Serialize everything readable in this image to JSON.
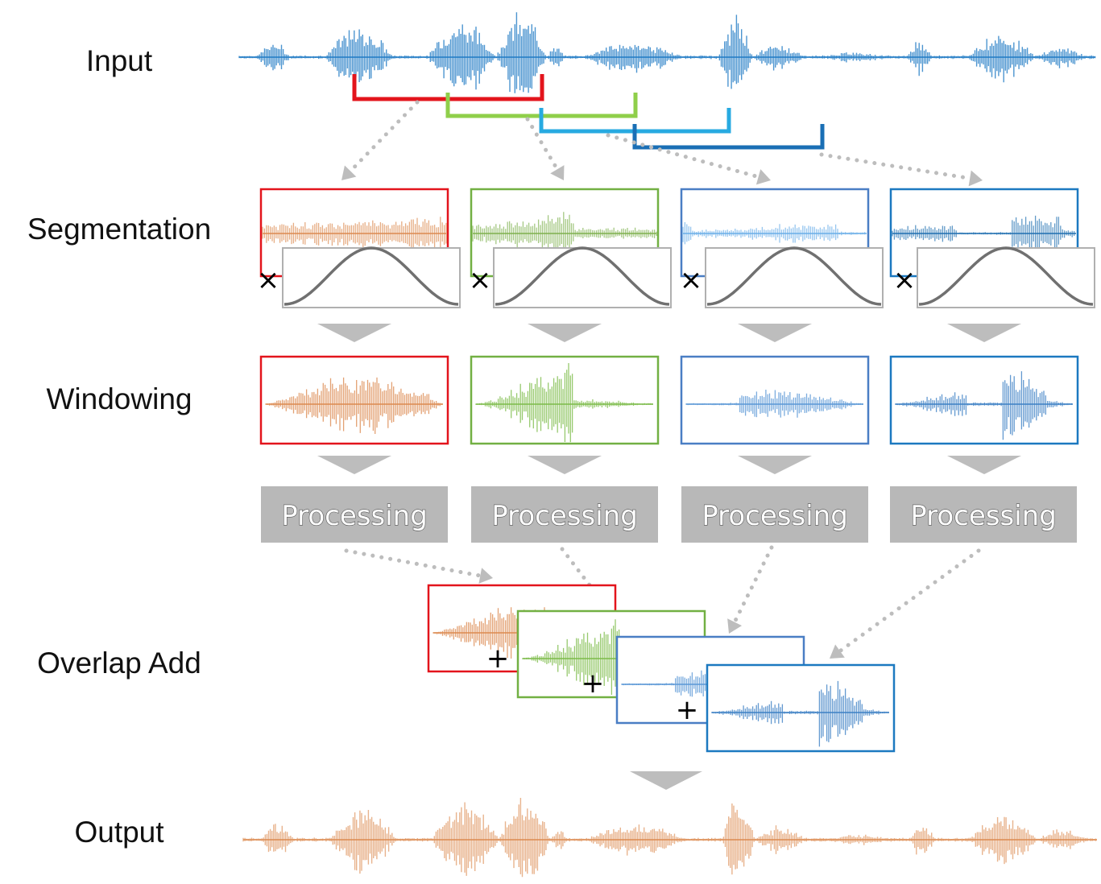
{
  "labels": {
    "input": "Input",
    "segmentation": "Segmentation",
    "windowing": "Windowing",
    "overlap_add": "Overlap Add",
    "output": "Output"
  },
  "processing_label": "Processing",
  "multiply_sign": "×",
  "plus_sign": "+",
  "colors": {
    "frame_1": "#e3141c",
    "frame_2": "#72b043",
    "frame_3": "#4a7ec4",
    "frame_4": "#1c79c0",
    "bracket_1": "#e3141c",
    "bracket_2": "#8fcf4a",
    "bracket_3": "#27aae1",
    "bracket_4": "#1a6fb5",
    "input_wave": "#1f7ac4",
    "output_wave": "#dc8a50",
    "processing_box": "#b8b8b8",
    "arrow": "#bdbdbd",
    "window_curve": "#707070"
  }
}
